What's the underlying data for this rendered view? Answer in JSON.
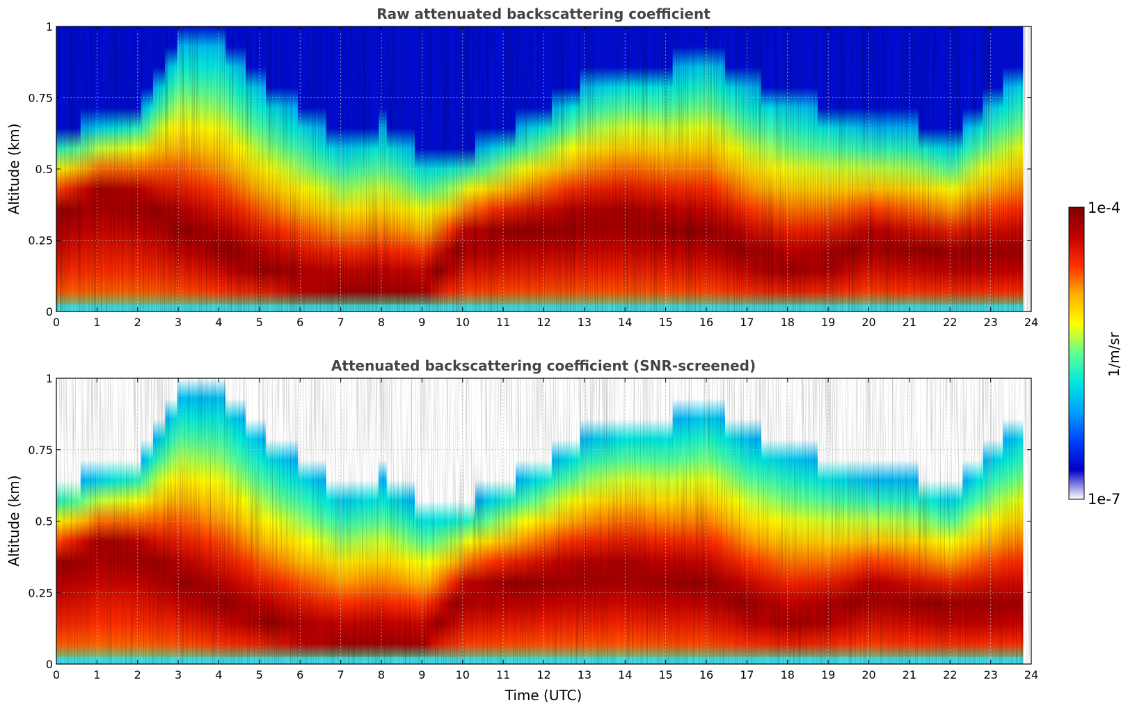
{
  "chart_data": [
    {
      "type": "heatmap",
      "title": "Raw attenuated backscattering coefficient",
      "xlabel": "",
      "ylabel": "Altitude (km)",
      "xlim": [
        0,
        24
      ],
      "ylim": [
        0,
        1
      ],
      "xticks": [
        "0",
        "1",
        "2",
        "3",
        "4",
        "5",
        "6",
        "7",
        "8",
        "9",
        "10",
        "11",
        "12",
        "13",
        "14",
        "15",
        "16",
        "17",
        "18",
        "19",
        "20",
        "21",
        "22",
        "23",
        "24"
      ],
      "yticks": [
        "0",
        "0.25",
        "0.5",
        "0.75",
        "1"
      ],
      "grid": true,
      "data_end_hour": 23.8,
      "layer_top_km": [
        {
          "t": 0,
          "km": 0.62
        },
        {
          "t": 1,
          "km": 0.66
        },
        {
          "t": 2,
          "km": 0.7
        },
        {
          "t": 3,
          "km": 0.95
        },
        {
          "t": 4,
          "km": 0.95
        },
        {
          "t": 5,
          "km": 0.8
        },
        {
          "t": 6,
          "km": 0.7
        },
        {
          "t": 7,
          "km": 0.6
        },
        {
          "t": 8,
          "km": 0.65
        },
        {
          "t": 9,
          "km": 0.55
        },
        {
          "t": 10,
          "km": 0.55
        },
        {
          "t": 11,
          "km": 0.62
        },
        {
          "t": 12,
          "km": 0.7
        },
        {
          "t": 13,
          "km": 0.8
        },
        {
          "t": 14,
          "km": 0.85
        },
        {
          "t": 15,
          "km": 0.85
        },
        {
          "t": 16,
          "km": 0.9
        },
        {
          "t": 17,
          "km": 0.8
        },
        {
          "t": 18,
          "km": 0.75
        },
        {
          "t": 19,
          "km": 0.7
        },
        {
          "t": 20,
          "km": 0.65
        },
        {
          "t": 21,
          "km": 0.65
        },
        {
          "t": 22,
          "km": 0.6
        },
        {
          "t": 23,
          "km": 0.75
        },
        {
          "t": 23.8,
          "km": 0.85
        }
      ],
      "max_layer_km": [
        {
          "t": 0,
          "km": 0.35
        },
        {
          "t": 1,
          "km": 0.42
        },
        {
          "t": 2,
          "km": 0.4
        },
        {
          "t": 3,
          "km": 0.3
        },
        {
          "t": 4,
          "km": 0.22
        },
        {
          "t": 5,
          "km": 0.15
        },
        {
          "t": 6,
          "km": 0.1
        },
        {
          "t": 7,
          "km": 0.08
        },
        {
          "t": 8,
          "km": 0.08
        },
        {
          "t": 9,
          "km": 0.08
        },
        {
          "t": 10,
          "km": 0.25
        },
        {
          "t": 11,
          "km": 0.28
        },
        {
          "t": 12,
          "km": 0.3
        },
        {
          "t": 13,
          "km": 0.32
        },
        {
          "t": 14,
          "km": 0.33
        },
        {
          "t": 15,
          "km": 0.3
        },
        {
          "t": 16,
          "km": 0.28
        },
        {
          "t": 17,
          "km": 0.2
        },
        {
          "t": 18,
          "km": 0.15
        },
        {
          "t": 19,
          "km": 0.18
        },
        {
          "t": 20,
          "km": 0.25
        },
        {
          "t": 21,
          "km": 0.22
        },
        {
          "t": 22,
          "km": 0.2
        },
        {
          "t": 23,
          "km": 0.2
        },
        {
          "t": 23.8,
          "km": 0.2
        }
      ]
    },
    {
      "type": "heatmap",
      "title": "Attenuated backscattering coefficient (SNR-screened)",
      "xlabel": "Time (UTC)",
      "ylabel": "Altitude (km)",
      "xlim": [
        0,
        24
      ],
      "ylim": [
        0,
        1
      ],
      "xticks": [
        "0",
        "1",
        "2",
        "3",
        "4",
        "5",
        "6",
        "7",
        "8",
        "9",
        "10",
        "11",
        "12",
        "13",
        "14",
        "15",
        "16",
        "17",
        "18",
        "19",
        "20",
        "21",
        "22",
        "23",
        "24"
      ],
      "yticks": [
        "0",
        "0.25",
        "0.5",
        "0.75",
        "1"
      ],
      "grid": true,
      "data_end_hour": 23.8,
      "screened": true
    }
  ],
  "colorbar": {
    "min_label": "1e-7",
    "max_label": "1e-4",
    "unit_label": "1/m/sr",
    "scale": "log",
    "colormap": [
      "#ffffff",
      "#0000c8",
      "#0040ff",
      "#00a0ff",
      "#00e8e0",
      "#60ff90",
      "#ffff00",
      "#ffb000",
      "#ff3000",
      "#c00000",
      "#800000"
    ]
  }
}
